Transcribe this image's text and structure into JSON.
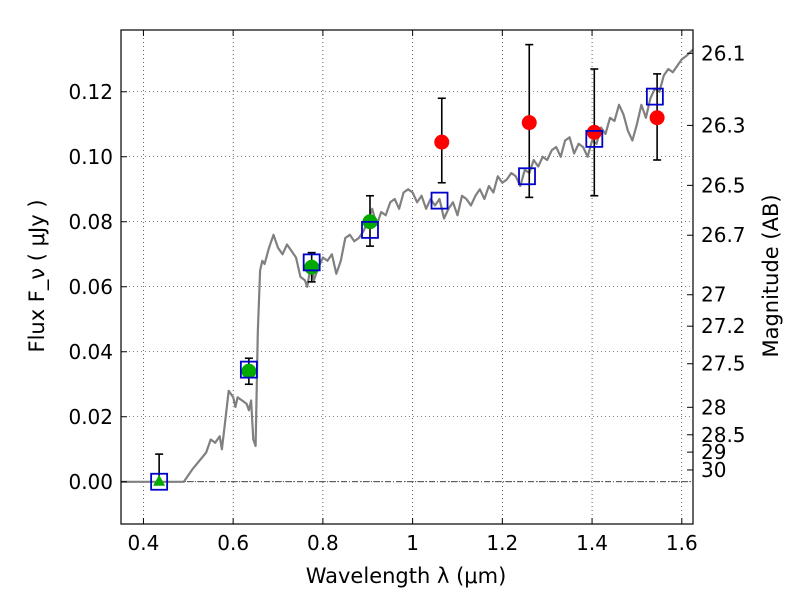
{
  "chart_data": {
    "type": "scatter",
    "xlabel": "Wavelength  λ (μm)",
    "ylabel": "Flux  F_ν  ( μJy )",
    "y2label": "Magnitude (AB)",
    "xlim": [
      0.35,
      1.625
    ],
    "ylim": [
      -0.013,
      0.139
    ],
    "grid": true,
    "x_ticks": [
      {
        "value": 0.4,
        "label": "0.4"
      },
      {
        "value": 0.6,
        "label": "0.6"
      },
      {
        "value": 0.8,
        "label": "0.8"
      },
      {
        "value": 1.0,
        "label": "1"
      },
      {
        "value": 1.2,
        "label": "1.2"
      },
      {
        "value": 1.4,
        "label": "1.4"
      },
      {
        "value": 1.6,
        "label": "1.6"
      }
    ],
    "y_ticks": [
      {
        "value": 0.0,
        "label": "0.00"
      },
      {
        "value": 0.02,
        "label": "0.02"
      },
      {
        "value": 0.04,
        "label": "0.04"
      },
      {
        "value": 0.06,
        "label": "0.06"
      },
      {
        "value": 0.08,
        "label": "0.08"
      },
      {
        "value": 0.1,
        "label": "0.10"
      },
      {
        "value": 0.12,
        "label": "0.12"
      }
    ],
    "y2_ticks": [
      {
        "value": 26.1,
        "label": "26.1"
      },
      {
        "value": 26.3,
        "label": "26.3"
      },
      {
        "value": 26.5,
        "label": "26.5"
      },
      {
        "value": 26.7,
        "label": "26.7"
      },
      {
        "value": 27,
        "label": "27"
      },
      {
        "value": 27.2,
        "label": "27.2"
      },
      {
        "value": 27.5,
        "label": "27.5"
      },
      {
        "value": 28,
        "label": "28"
      },
      {
        "value": 28.5,
        "label": "28.5"
      },
      {
        "value": 29,
        "label": "29"
      },
      {
        "value": 30,
        "label": "30"
      }
    ],
    "colors": {
      "model": "#808080",
      "model_points": "#0000cc",
      "detections_optical": "#00aa00",
      "detections_ir": "#ff0000",
      "errorbars": "#000000",
      "zero_line": "#000000"
    },
    "model_spectrum": {
      "x": [
        0.35,
        0.49,
        0.51,
        0.54,
        0.55,
        0.56,
        0.57,
        0.575,
        0.58,
        0.59,
        0.6,
        0.605,
        0.61,
        0.62,
        0.63,
        0.635,
        0.64,
        0.645,
        0.65,
        0.655,
        0.66,
        0.665,
        0.67,
        0.68,
        0.69,
        0.7,
        0.71,
        0.72,
        0.73,
        0.74,
        0.75,
        0.76,
        0.765,
        0.77,
        0.775,
        0.78,
        0.79,
        0.8,
        0.81,
        0.82,
        0.83,
        0.84,
        0.85,
        0.86,
        0.87,
        0.88,
        0.89,
        0.9,
        0.91,
        0.92,
        0.93,
        0.94,
        0.95,
        0.96,
        0.97,
        0.98,
        0.99,
        1.0,
        1.01,
        1.02,
        1.03,
        1.04,
        1.05,
        1.06,
        1.07,
        1.08,
        1.09,
        1.1,
        1.11,
        1.12,
        1.13,
        1.14,
        1.15,
        1.16,
        1.17,
        1.18,
        1.19,
        1.2,
        1.21,
        1.22,
        1.23,
        1.24,
        1.25,
        1.26,
        1.27,
        1.28,
        1.29,
        1.3,
        1.31,
        1.32,
        1.33,
        1.34,
        1.35,
        1.36,
        1.37,
        1.38,
        1.39,
        1.4,
        1.41,
        1.42,
        1.43,
        1.44,
        1.45,
        1.46,
        1.47,
        1.48,
        1.49,
        1.5,
        1.51,
        1.52,
        1.53,
        1.54,
        1.55,
        1.56,
        1.57,
        1.58,
        1.59,
        1.6,
        1.61,
        1.625
      ],
      "y": [
        0.0,
        0.0,
        0.004,
        0.009,
        0.013,
        0.012,
        0.014,
        0.01,
        0.016,
        0.028,
        0.026,
        0.023,
        0.026,
        0.025,
        0.024,
        0.022,
        0.025,
        0.013,
        0.011,
        0.046,
        0.065,
        0.068,
        0.067,
        0.072,
        0.076,
        0.072,
        0.07,
        0.073,
        0.071,
        0.069,
        0.063,
        0.062,
        0.06,
        0.064,
        0.067,
        0.062,
        0.066,
        0.069,
        0.068,
        0.07,
        0.064,
        0.068,
        0.075,
        0.076,
        0.074,
        0.075,
        0.077,
        0.08,
        0.084,
        0.079,
        0.083,
        0.082,
        0.086,
        0.087,
        0.084,
        0.089,
        0.09,
        0.089,
        0.086,
        0.088,
        0.084,
        0.087,
        0.085,
        0.087,
        0.081,
        0.084,
        0.086,
        0.082,
        0.088,
        0.087,
        0.085,
        0.088,
        0.09,
        0.087,
        0.091,
        0.089,
        0.094,
        0.092,
        0.093,
        0.095,
        0.094,
        0.091,
        0.096,
        0.095,
        0.099,
        0.097,
        0.1,
        0.099,
        0.102,
        0.103,
        0.1,
        0.105,
        0.106,
        0.101,
        0.104,
        0.103,
        0.1,
        0.105,
        0.104,
        0.109,
        0.107,
        0.112,
        0.111,
        0.116,
        0.113,
        0.108,
        0.105,
        0.11,
        0.116,
        0.112,
        0.118,
        0.121,
        0.12,
        0.125,
        0.127,
        0.126,
        0.128,
        0.13,
        0.131,
        0.133
      ]
    },
    "model_photometry": {
      "x": [
        0.435,
        0.635,
        0.775,
        0.905,
        1.06,
        1.255,
        1.405,
        1.54
      ],
      "y": [
        0.0,
        0.0345,
        0.0675,
        0.0775,
        0.0865,
        0.094,
        0.1055,
        0.1185
      ]
    },
    "observed": [
      {
        "x": 0.435,
        "y": 0.0,
        "err_low": 0.0,
        "err_high": 0.0085,
        "marker": "triangle",
        "color": "#00aa00"
      },
      {
        "x": 0.635,
        "y": 0.034,
        "err_low": 0.004,
        "err_high": 0.004,
        "marker": "circle",
        "color": "#00aa00"
      },
      {
        "x": 0.775,
        "y": 0.066,
        "err_low": 0.0045,
        "err_high": 0.0045,
        "marker": "circle",
        "color": "#00aa00"
      },
      {
        "x": 0.905,
        "y": 0.08,
        "err_low": 0.0075,
        "err_high": 0.008,
        "marker": "circle",
        "color": "#00aa00"
      },
      {
        "x": 1.065,
        "y": 0.1045,
        "err_low": 0.0125,
        "err_high": 0.0135,
        "marker": "circle",
        "color": "#ff0000"
      },
      {
        "x": 1.26,
        "y": 0.1105,
        "err_low": 0.023,
        "err_high": 0.024,
        "marker": "circle",
        "color": "#ff0000"
      },
      {
        "x": 1.405,
        "y": 0.1075,
        "err_low": 0.0195,
        "err_high": 0.0195,
        "marker": "circle",
        "color": "#ff0000"
      },
      {
        "x": 1.545,
        "y": 0.112,
        "err_low": 0.013,
        "err_high": 0.0135,
        "marker": "circle",
        "color": "#ff0000"
      }
    ]
  }
}
